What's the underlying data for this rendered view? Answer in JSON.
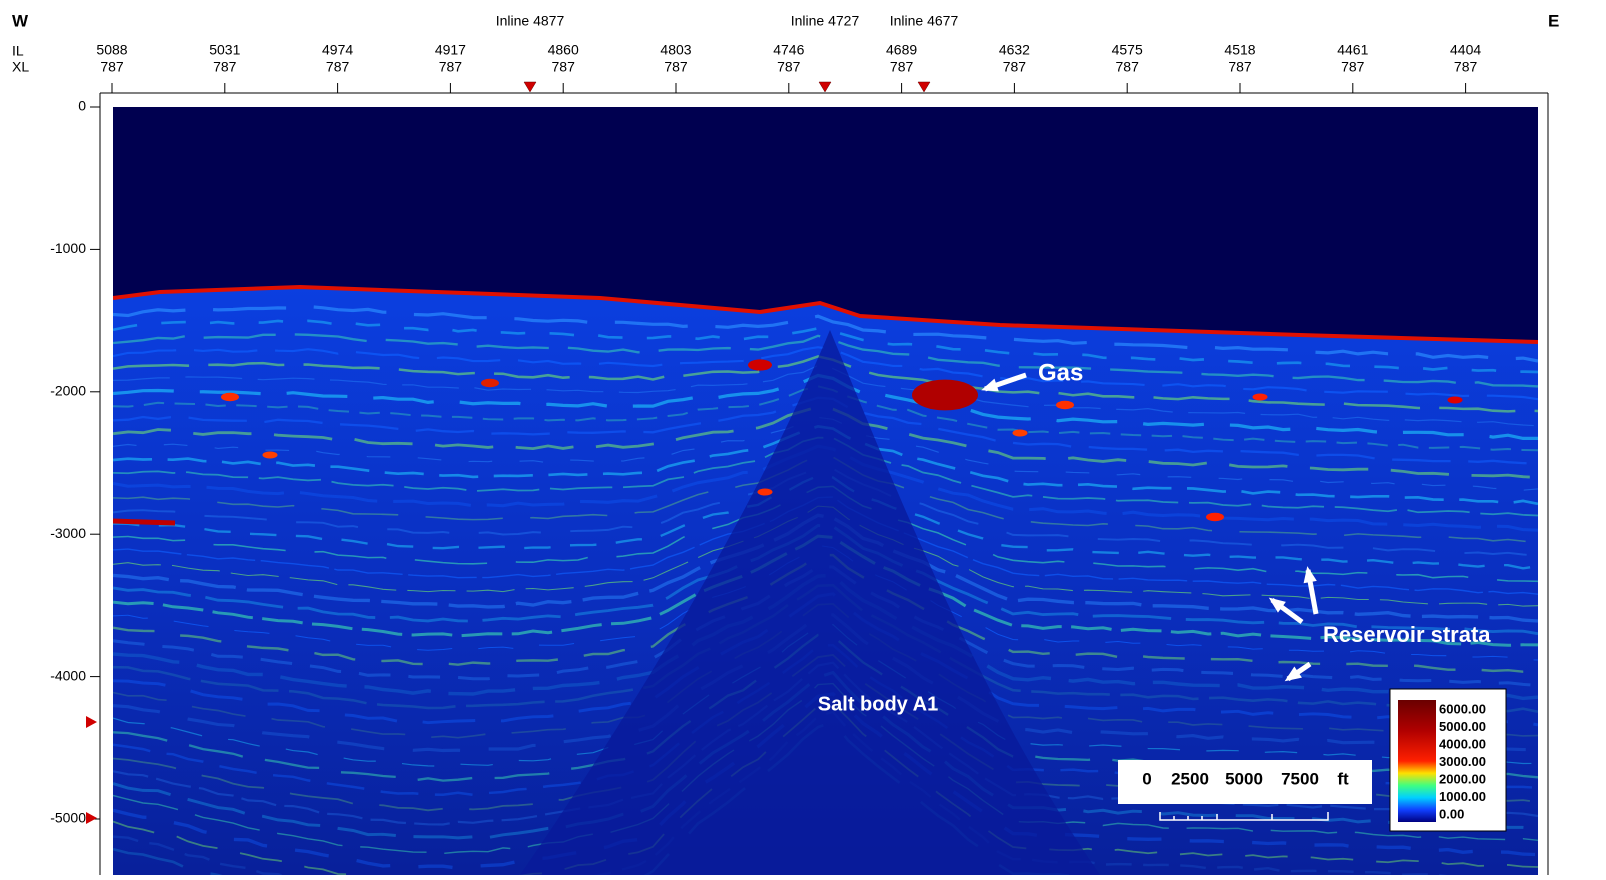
{
  "header": {
    "west": "W",
    "east": "E",
    "il_label": "IL",
    "xl_label": "XL"
  },
  "inlines": [
    "Inline 4877",
    "Inline 4727",
    "Inline 4677"
  ],
  "traces": [
    {
      "il": "5088",
      "xl": "787"
    },
    {
      "il": "5031",
      "xl": "787"
    },
    {
      "il": "4974",
      "xl": "787"
    },
    {
      "il": "4917",
      "xl": "787"
    },
    {
      "il": "4860",
      "xl": "787"
    },
    {
      "il": "4803",
      "xl": "787"
    },
    {
      "il": "4746",
      "xl": "787"
    },
    {
      "il": "4689",
      "xl": "787"
    },
    {
      "il": "4632",
      "xl": "787"
    },
    {
      "il": "4575",
      "xl": "787"
    },
    {
      "il": "4518",
      "xl": "787"
    },
    {
      "il": "4461",
      "xl": "787"
    },
    {
      "il": "4404",
      "xl": "787"
    }
  ],
  "depth_axis": [
    "0",
    "-1000",
    "-2000",
    "-3000",
    "-4000",
    "-5000"
  ],
  "annotations": {
    "gas": "Gas",
    "reservoir": "Reservoir strata",
    "salt": "Salt body A1"
  },
  "scale_bar": [
    "0",
    "2500",
    "5000",
    "7500",
    "ft"
  ],
  "color_bar": [
    "6000.00",
    "5000.00",
    "4000.00",
    "3000.00",
    "2000.00",
    "1000.00",
    "0.00"
  ]
}
